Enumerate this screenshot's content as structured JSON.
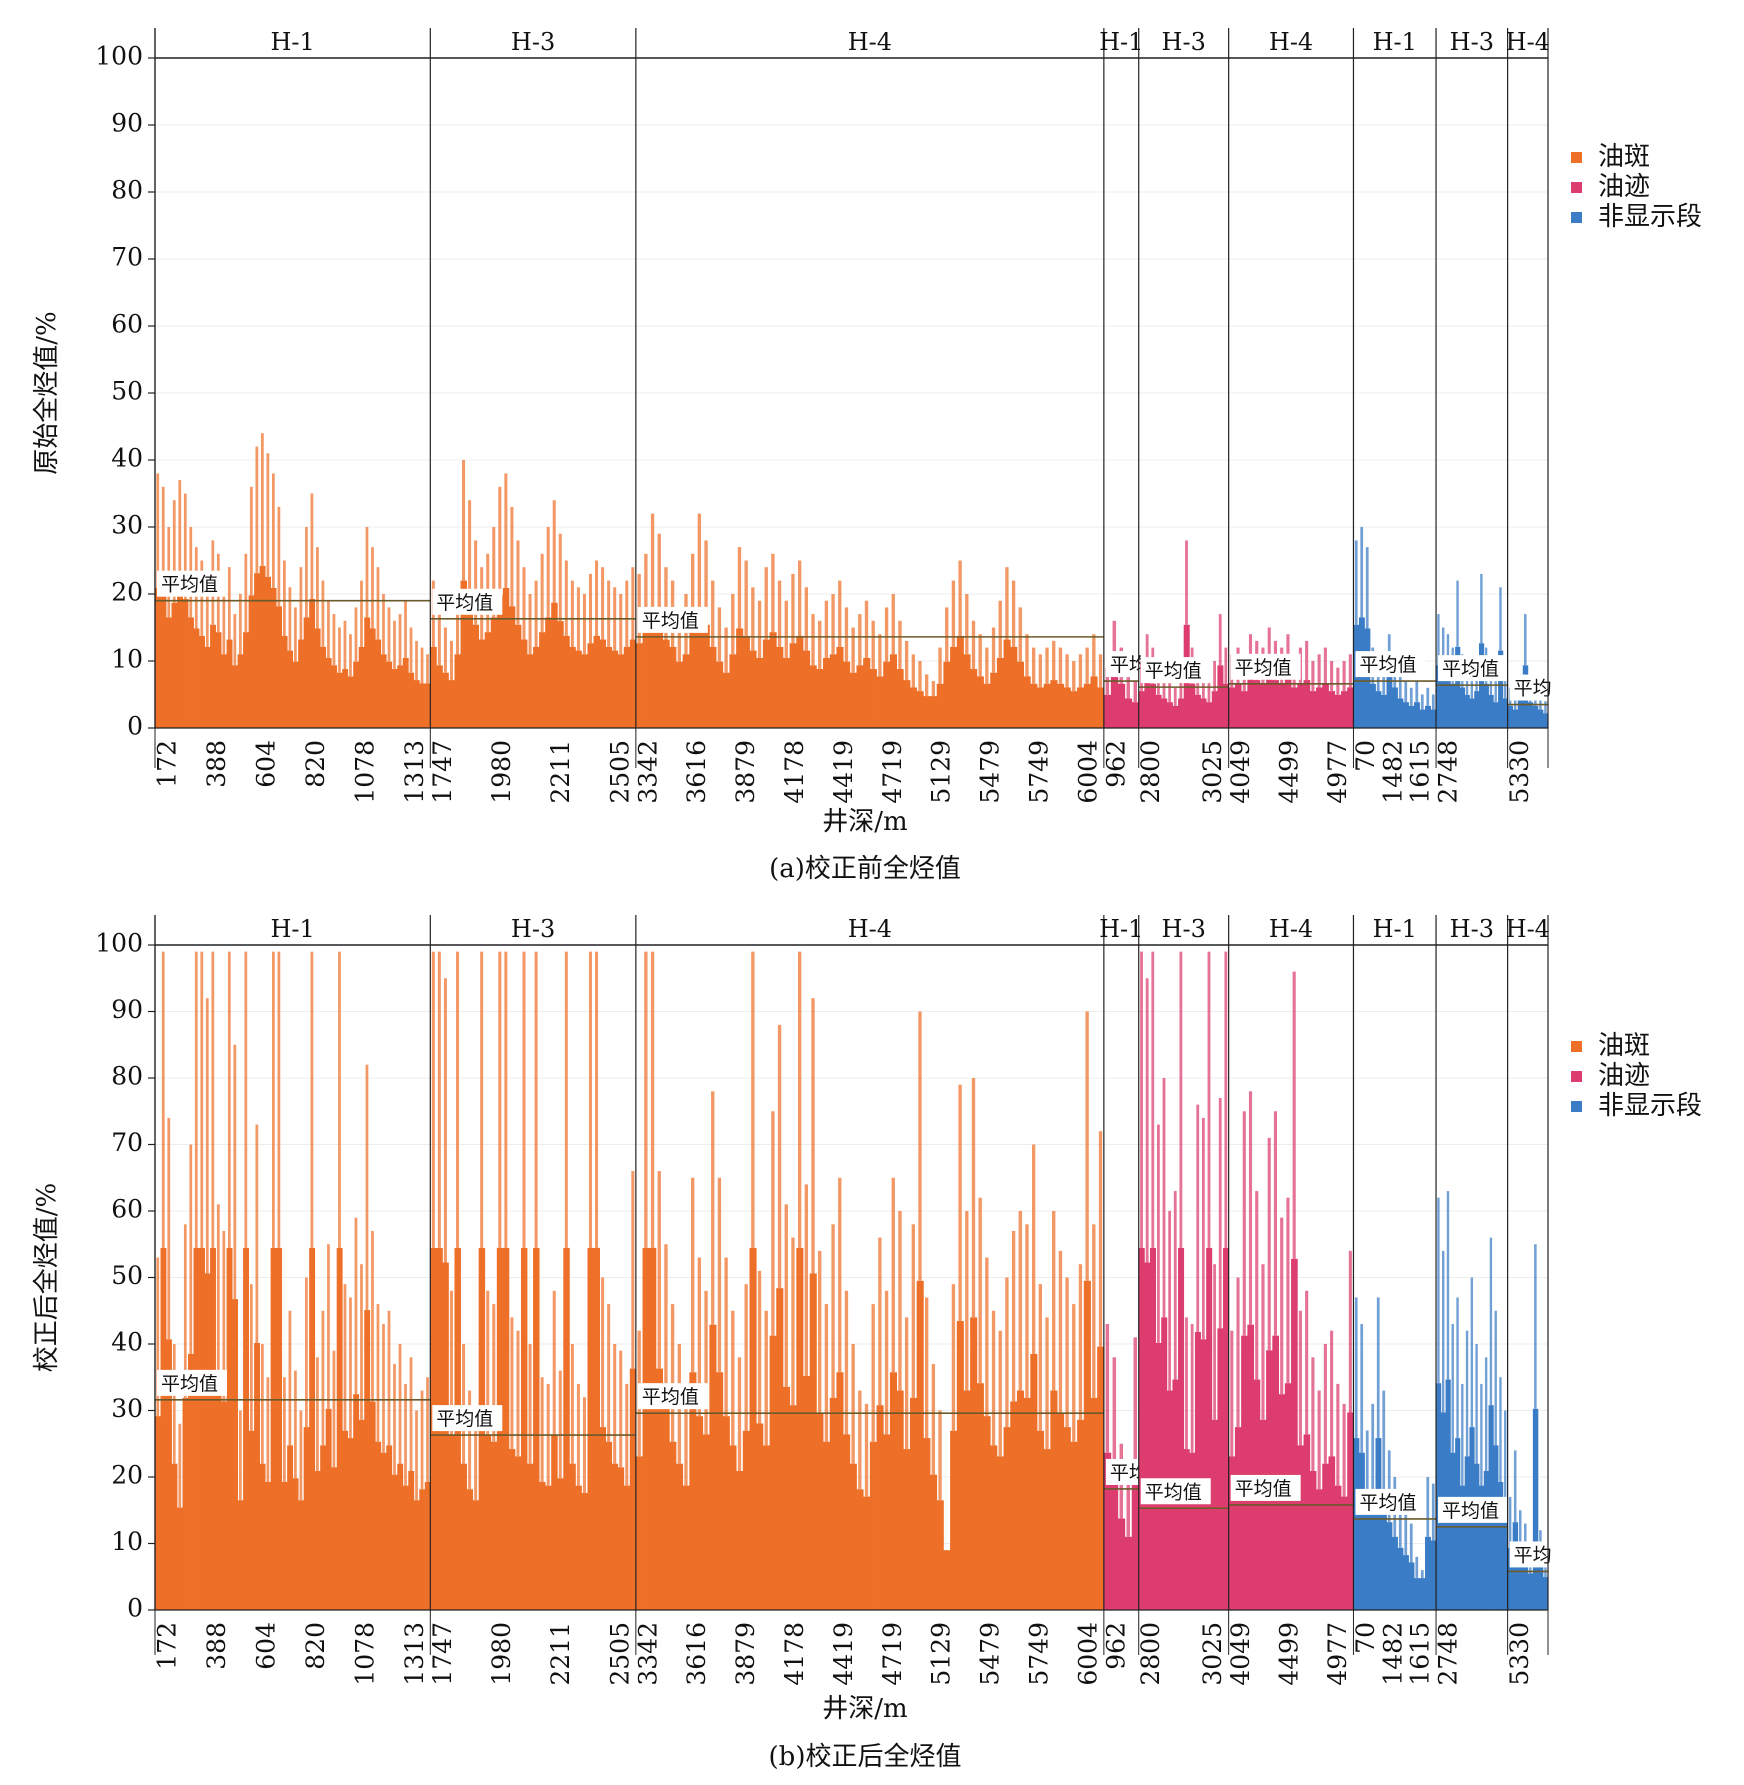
{
  "legend": [
    {
      "label": "油斑",
      "color": "#ee7028"
    },
    {
      "label": "油迹",
      "color": "#dc3d6e"
    },
    {
      "label": "非显示段",
      "color": "#3a7cc6"
    }
  ],
  "avg_label": "平均值",
  "chart_data": [
    {
      "type": "bar",
      "panel_id": "a",
      "caption": "(a)校正前全烃值",
      "ylabel": "原始全烃值/%",
      "xlabel": "井深/m",
      "ylim": [
        0,
        100
      ],
      "yticks": [
        "0",
        "10",
        "20",
        "30",
        "40",
        "50",
        "60",
        "70",
        "80",
        "90",
        "100"
      ],
      "grid": true,
      "legend_position": "right",
      "groups": [
        {
          "category": "油斑",
          "color": "#ee7028",
          "sections": [
            {
              "name": "H-1",
              "width": 1.5,
              "mean": 19.0,
              "ticks": [
                "172",
                "388",
                "604",
                "820",
                "1078",
                "1313"
              ],
              "avg_label_visible": "平均值",
              "values": [
                38,
                36,
                30,
                34,
                37,
                35,
                30,
                27,
                25,
                22,
                28,
                26,
                20,
                24,
                17,
                20,
                26,
                36,
                42,
                44,
                41,
                38,
                33,
                25,
                21,
                18,
                24,
                30,
                35,
                27,
                22,
                19,
                17,
                15,
                16,
                14,
                18,
                22,
                30,
                27,
                24,
                20,
                18,
                16,
                17,
                19,
                15,
                13,
                12,
                11
              ]
            },
            {
              "name": "H-3",
              "width": 1.12,
              "mean": 16.3,
              "ticks": [
                "1747",
                "1980",
                "2211",
                "2505"
              ],
              "avg_label_visible": "平均值",
              "values": [
                22,
                17,
                15,
                13,
                20,
                40,
                34,
                28,
                24,
                26,
                30,
                36,
                38,
                33,
                28,
                24,
                20,
                22,
                26,
                30,
                34,
                29,
                25,
                22,
                21,
                20,
                23,
                25,
                24,
                22,
                21,
                20,
                22,
                24
              ]
            },
            {
              "name": "H-4",
              "width": 2.55,
              "mean": 13.6,
              "ticks": [
                "3342",
                "3616",
                "3879",
                "4178",
                "4419",
                "4719",
                "5129",
                "5479",
                "5749",
                "6004"
              ],
              "avg_label_visible": "平均值",
              "values": [
                23,
                26,
                32,
                29,
                24,
                22,
                18,
                20,
                26,
                32,
                28,
                22,
                18,
                15,
                20,
                27,
                25,
                21,
                19,
                24,
                26,
                22,
                19,
                23,
                25,
                21,
                17,
                16,
                19,
                20,
                22,
                18,
                15,
                17,
                19,
                16,
                14,
                18,
                20,
                16,
                13,
                11,
                10,
                8,
                7,
                12,
                18,
                22,
                25,
                20,
                16,
                14,
                12,
                15,
                19,
                24,
                22,
                18,
                14,
                12,
                11,
                12,
                13,
                12,
                11,
                10,
                11,
                12,
                14,
                11
              ]
            }
          ]
        },
        {
          "category": "油迹",
          "color": "#dc3d6e",
          "sections": [
            {
              "name": "H-1",
              "width": 0.19,
              "mean": 7.0,
              "ticks": [
                "962"
              ],
              "avg_label_visible": "平均",
              "values": [
                9,
                16,
                12,
                8,
                7
              ]
            },
            {
              "name": "H-3",
              "width": 0.49,
              "mean": 6.1,
              "ticks": [
                "2800",
                "3025"
              ],
              "avg_label_visible": "平均值",
              "values": [
                10,
                14,
                12,
                9,
                8,
                7,
                6,
                8,
                28,
                12,
                9,
                8,
                7,
                10,
                17,
                12
              ]
            },
            {
              "name": "H-4",
              "width": 0.68,
              "mean": 6.6,
              "ticks": [
                "4049",
                "4499",
                "4977"
              ],
              "avg_label_visible": "平均值",
              "values": [
                11,
                12,
                10,
                14,
                13,
                12,
                15,
                13,
                12,
                14,
                11,
                12,
                13,
                10,
                11,
                12,
                10,
                9,
                10,
                11
              ]
            }
          ]
        },
        {
          "category": "非显示段",
          "color": "#3a7cc6",
          "sections": [
            {
              "name": "H-1",
              "width": 0.45,
              "mean": 7.0,
              "ticks": [
                "70",
                "1482",
                "1615"
              ],
              "avg_label_visible": "平均值",
              "values": [
                28,
                30,
                27,
                12,
                10,
                9,
                14,
                11,
                8,
                7,
                6,
                7,
                5,
                6,
                5
              ]
            },
            {
              "name": "H-3",
              "width": 0.39,
              "mean": 6.4,
              "ticks": [
                "2748"
              ],
              "avg_label_visible": "平均值",
              "values": [
                17,
                15,
                14,
                12,
                22,
                11,
                9,
                8,
                10,
                23,
                12,
                9,
                7,
                21,
                8
              ]
            },
            {
              "name": "H-4",
              "width": 0.22,
              "mean": 3.5,
              "ticks": [
                "5330"
              ],
              "avg_label_visible": "平均",
              "values": [
                6,
                5,
                8,
                17,
                7,
                6,
                5,
                4
              ]
            }
          ]
        }
      ]
    },
    {
      "type": "bar",
      "panel_id": "b",
      "caption": "(b)校正后全烃值",
      "ylabel": "校正后全烃值/%",
      "xlabel": "井深/m",
      "ylim": [
        0,
        100
      ],
      "yticks": [
        "0",
        "10",
        "20",
        "30",
        "40",
        "50",
        "60",
        "70",
        "80",
        "90",
        "100"
      ],
      "grid": true,
      "legend_position": "right",
      "groups": [
        {
          "category": "油斑",
          "color": "#ee7028",
          "sections": [
            {
              "name": "H-1",
              "width": 1.5,
              "mean": 31.6,
              "ticks": [
                "172",
                "388",
                "604",
                "820",
                "1078",
                "1313"
              ],
              "avg_label_visible": "平均值",
              "values": [
                53,
                99,
                74,
                40,
                28,
                58,
                70,
                99,
                99,
                92,
                99,
                61,
                57,
                99,
                85,
                30,
                99,
                49,
                73,
                40,
                35,
                99,
                99,
                35,
                45,
                36,
                30,
                50,
                99,
                38,
                45,
                55,
                39,
                99,
                49,
                47,
                59,
                52,
                82,
                57,
                46,
                43,
                45,
                37,
                40,
                34,
                38,
                30,
                33,
                35
              ]
            },
            {
              "name": "H-3",
              "width": 1.12,
              "mean": 26.3,
              "ticks": [
                "1747",
                "1980",
                "2211",
                "2505"
              ],
              "avg_label_visible": "平均值",
              "values": [
                99,
                99,
                95,
                48,
                99,
                40,
                33,
                30,
                99,
                48,
                46,
                99,
                99,
                44,
                42,
                99,
                40,
                99,
                35,
                34,
                48,
                36,
                99,
                40,
                34,
                32,
                99,
                99,
                50,
                46,
                40,
                39,
                34,
                66
              ]
            },
            {
              "name": "H-4",
              "width": 2.55,
              "mean": 29.6,
              "ticks": [
                "3342",
                "3616",
                "3879",
                "4178",
                "4419",
                "4719",
                "5129",
                "5479",
                "5749",
                "6004"
              ],
              "avg_label_visible": "平均值",
              "values": [
                42,
                99,
                99,
                66,
                55,
                46,
                40,
                34,
                65,
                53,
                48,
                78,
                65,
                53,
                45,
                38,
                49,
                99,
                51,
                45,
                75,
                88,
                61,
                56,
                99,
                64,
                92,
                54,
                46,
                58,
                65,
                48,
                40,
                33,
                31,
                46,
                56,
                48,
                65,
                60,
                44,
                58,
                90,
                47,
                37,
                30,
                9,
                49,
                79,
                60,
                80,
                62,
                53,
                45,
                42,
                50,
                57,
                60,
                58,
                70,
                49,
                44,
                60,
                54,
                50,
                46,
                52,
                90,
                58,
                72
              ]
            }
          ]
        },
        {
          "category": "油迹",
          "color": "#dc3d6e",
          "sections": [
            {
              "name": "H-1",
              "width": 0.19,
              "mean": 18.2,
              "ticks": [
                "962"
              ],
              "avg_label_visible": "平均",
              "values": [
                43,
                38,
                25,
                20,
                41
              ]
            },
            {
              "name": "H-3",
              "width": 0.49,
              "mean": 15.3,
              "ticks": [
                "2800",
                "3025"
              ],
              "avg_label_visible": "平均值",
              "values": [
                99,
                95,
                99,
                73,
                80,
                60,
                63,
                99,
                44,
                43,
                76,
                74,
                99,
                52,
                77,
                99
              ]
            },
            {
              "name": "H-4",
              "width": 0.68,
              "mean": 15.8,
              "ticks": [
                "4049",
                "4499",
                "4977"
              ],
              "avg_label_visible": "平均值",
              "values": [
                42,
                50,
                75,
                78,
                63,
                52,
                71,
                75,
                59,
                62,
                96,
                45,
                48,
                38,
                33,
                40,
                42,
                34,
                31,
                54
              ]
            }
          ]
        },
        {
          "category": "非显示段",
          "color": "#3a7cc6",
          "sections": [
            {
              "name": "H-1",
              "width": 0.45,
              "mean": 13.7,
              "ticks": [
                "70",
                "1482",
                "1615"
              ],
              "avg_label_visible": "平均值",
              "values": [
                47,
                43,
                27,
                31,
                47,
                33,
                24,
                20,
                17,
                15,
                13,
                8,
                6,
                20,
                19
              ]
            },
            {
              "name": "H-3",
              "width": 0.39,
              "mean": 12.5,
              "ticks": [
                "2748"
              ],
              "avg_label_visible": "平均值",
              "values": [
                62,
                54,
                63,
                43,
                47,
                34,
                42,
                50,
                40,
                34,
                38,
                56,
                45,
                35,
                30
              ]
            },
            {
              "name": "H-4",
              "width": 0.22,
              "mean": 5.8,
              "ticks": [
                "5330"
              ],
              "avg_label_visible": "平均",
              "values": [
                17,
                24,
                15,
                13,
                10,
                55,
                12,
                9
              ]
            }
          ]
        }
      ]
    }
  ]
}
